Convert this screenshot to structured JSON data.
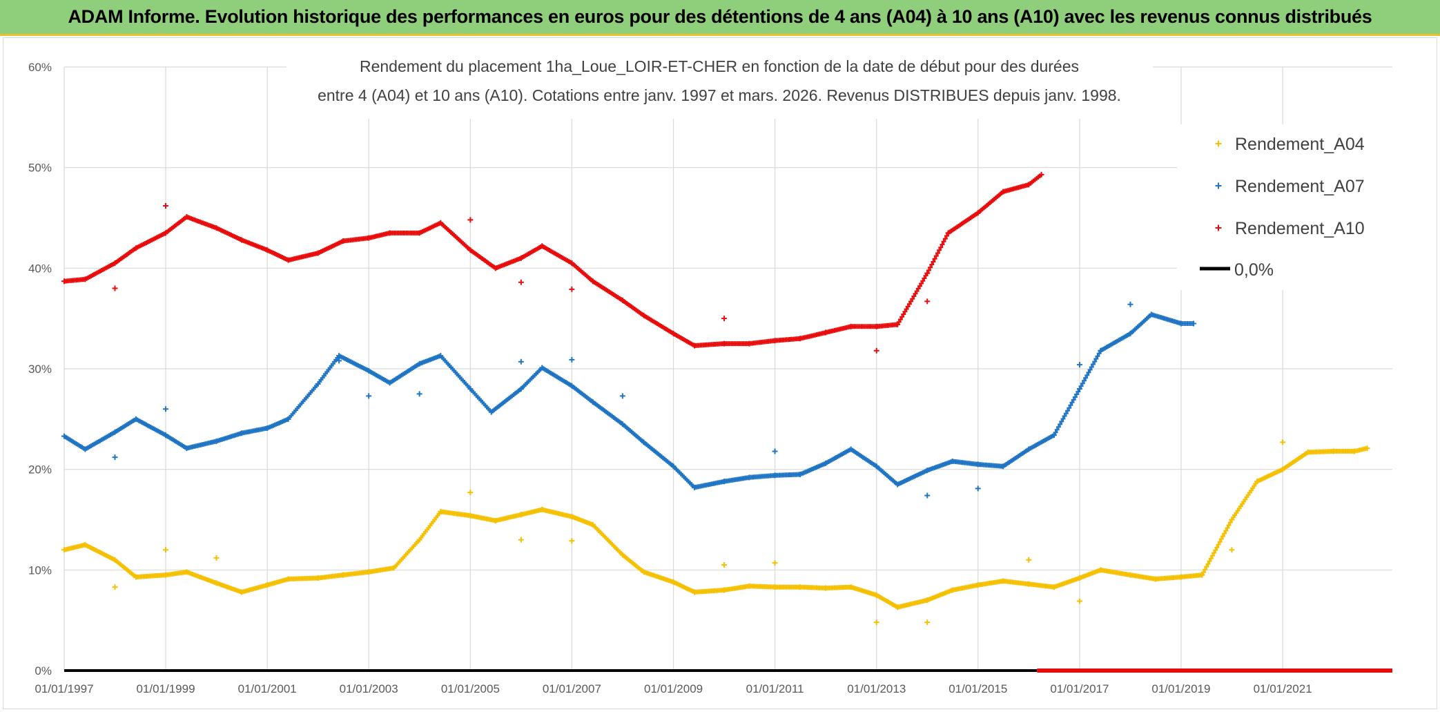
{
  "header": {
    "banner": "ADAM Informe. Evolution historique des performances en euros pour des détentions de 4 ans (A04) à 10 ans (A10) avec les revenus connus distribués"
  },
  "chart_data": {
    "type": "scatter",
    "title_lines": [
      "Rendement du placement 1ha_Loue_LOIR-ET-CHER en fonction de la date de début pour des durées",
      "entre 4 (A04) et 10 ans (A10). Cotations entre janv. 1997 et mars. 2026. Revenus DISTRIBUES depuis janv. 1998."
    ],
    "xlabel": "",
    "ylabel": "",
    "x_range": [
      "1997-01-01",
      "2023-03-01"
    ],
    "ylim": [
      0,
      60
    ],
    "x_ticks": [
      "01/01/1997",
      "01/01/1999",
      "01/01/2001",
      "01/01/2003",
      "01/01/2005",
      "01/01/2007",
      "01/01/2009",
      "01/01/2011",
      "01/01/2013",
      "01/01/2015",
      "01/01/2017",
      "01/01/2019",
      "01/01/2021"
    ],
    "y_ticks": [
      "0%",
      "10%",
      "20%",
      "30%",
      "40%",
      "50%",
      "60%"
    ],
    "grid": true,
    "legend_position": "top-right",
    "series": [
      {
        "name": "Rendement_A04",
        "color": "#f5c000",
        "x": [
          "1997-01-01",
          "1997-06-01",
          "1998-01-01",
          "1998-06-01",
          "1999-01-01",
          "1999-06-01",
          "2000-01-01",
          "2000-07-01",
          "2001-01-01",
          "2001-06-01",
          "2002-01-01",
          "2002-07-01",
          "2003-01-01",
          "2003-07-01",
          "2004-01-01",
          "2004-06-01",
          "2005-01-01",
          "2005-07-01",
          "2006-01-01",
          "2006-06-01",
          "2007-01-01",
          "2007-06-01",
          "2008-01-01",
          "2008-06-01",
          "2009-01-01",
          "2009-06-01",
          "2010-01-01",
          "2010-07-01",
          "2011-01-01",
          "2011-07-01",
          "2012-01-01",
          "2012-07-01",
          "2013-01-01",
          "2013-06-01",
          "2014-01-01",
          "2014-07-01",
          "2015-01-01",
          "2015-07-01",
          "2016-01-01",
          "2016-07-01",
          "2017-01-01",
          "2017-06-01",
          "2018-01-01",
          "2018-07-01",
          "2019-01-01",
          "2019-06-01",
          "2020-01-01",
          "2020-07-01",
          "2021-01-01",
          "2021-07-01",
          "2022-01-01",
          "2022-06-01",
          "2022-09-01"
        ],
        "values": [
          12,
          12.5,
          11,
          9.3,
          9.5,
          9.8,
          8.7,
          7.8,
          8.5,
          9.1,
          9.2,
          9.5,
          9.8,
          10.2,
          13,
          15.8,
          15.4,
          14.9,
          15.5,
          16,
          15.3,
          14.5,
          11.5,
          9.8,
          8.8,
          7.8,
          8,
          8.4,
          8.3,
          8.3,
          8.2,
          8.3,
          7.5,
          6.3,
          7,
          8,
          8.5,
          8.9,
          8.6,
          8.3,
          9.2,
          10,
          9.5,
          9.1,
          9.3,
          9.5,
          15,
          18.8,
          20,
          21.7,
          21.8,
          21.8,
          22.1
        ]
      },
      {
        "name": "Rendement_A07",
        "color": "#1f75c4",
        "x": [
          "1997-01-01",
          "1997-06-01",
          "1998-01-01",
          "1998-06-01",
          "1999-01-01",
          "1999-06-01",
          "2000-01-01",
          "2000-07-01",
          "2001-01-01",
          "2001-06-01",
          "2002-01-01",
          "2002-06-01",
          "2003-01-01",
          "2003-06-01",
          "2004-01-01",
          "2004-06-01",
          "2005-01-01",
          "2005-06-01",
          "2006-01-01",
          "2006-06-01",
          "2007-01-01",
          "2007-06-01",
          "2008-01-01",
          "2008-06-01",
          "2009-01-01",
          "2009-06-01",
          "2010-01-01",
          "2010-07-01",
          "2011-01-01",
          "2011-07-01",
          "2012-01-01",
          "2012-07-01",
          "2013-01-01",
          "2013-06-01",
          "2014-01-01",
          "2014-07-01",
          "2015-01-01",
          "2015-07-01",
          "2016-01-01",
          "2016-07-01",
          "2017-01-01",
          "2017-06-01",
          "2018-01-01",
          "2018-06-01",
          "2019-01-01",
          "2019-04-01"
        ],
        "values": [
          23.3,
          22,
          23.7,
          25,
          23.4,
          22.1,
          22.8,
          23.6,
          24.1,
          25,
          28.5,
          31.3,
          29.8,
          28.6,
          30.5,
          31.3,
          28,
          25.7,
          28,
          30.1,
          28.3,
          26.7,
          24.5,
          22.7,
          20.3,
          18.2,
          18.8,
          19.2,
          19.4,
          19.5,
          20.6,
          22,
          20.3,
          18.5,
          19.9,
          20.8,
          20.5,
          20.3,
          22,
          23.4,
          28,
          31.8,
          33.5,
          35.4,
          34.5,
          34.5
        ]
      },
      {
        "name": "Rendement_A10",
        "color": "#e80c0c",
        "x": [
          "1997-01-01",
          "1997-06-01",
          "1998-01-01",
          "1998-06-01",
          "1999-01-01",
          "1999-06-01",
          "2000-01-01",
          "2000-07-01",
          "2001-01-01",
          "2001-06-01",
          "2002-01-01",
          "2002-07-01",
          "2003-01-01",
          "2003-06-01",
          "2004-01-01",
          "2004-06-01",
          "2005-01-01",
          "2005-07-01",
          "2006-01-01",
          "2006-06-01",
          "2007-01-01",
          "2007-06-01",
          "2008-01-01",
          "2008-06-01",
          "2009-01-01",
          "2009-06-01",
          "2010-01-01",
          "2010-07-01",
          "2011-01-01",
          "2011-07-01",
          "2012-01-01",
          "2012-07-01",
          "2013-01-01",
          "2013-06-01",
          "2014-01-01",
          "2014-06-01",
          "2015-01-01",
          "2015-07-01",
          "2016-01-01",
          "2016-04-01"
        ],
        "values": [
          38.7,
          38.9,
          40.5,
          42,
          43.5,
          45.1,
          44,
          42.8,
          41.8,
          40.8,
          41.5,
          42.7,
          43,
          43.5,
          43.5,
          44.5,
          41.8,
          40,
          41,
          42.2,
          40.5,
          38.7,
          36.8,
          35.3,
          33.5,
          32.3,
          32.5,
          32.5,
          32.8,
          33,
          33.6,
          34.2,
          34.2,
          34.4,
          39.5,
          43.5,
          45.5,
          47.6,
          48.3,
          49.3
        ]
      },
      {
        "name": "0,0%",
        "color": "#000000",
        "x": [
          "1997-01-01",
          "2016-03-01"
        ],
        "values": [
          0,
          0
        ]
      }
    ],
    "zero_band": {
      "color": "#e80c0c",
      "x": [
        "2016-03-01",
        "2023-03-01"
      ],
      "value": 0
    },
    "outliers": {
      "Rendement_A04": [
        [
          "1998-01-01",
          8.3
        ],
        [
          "1999-01-01",
          12
        ],
        [
          "2000-01-01",
          11.2
        ],
        [
          "2005-01-01",
          17.7
        ],
        [
          "2006-01-01",
          13
        ],
        [
          "2007-01-01",
          12.9
        ],
        [
          "2010-01-01",
          10.5
        ],
        [
          "2011-01-01",
          10.7
        ],
        [
          "2013-01-01",
          4.8
        ],
        [
          "2014-01-01",
          4.8
        ],
        [
          "2016-01-01",
          11
        ],
        [
          "2017-01-01",
          6.9
        ],
        [
          "2020-01-01",
          12
        ],
        [
          "2021-01-01",
          22.7
        ]
      ],
      "Rendement_A07": [
        [
          "1998-01-01",
          21.2
        ],
        [
          "1999-01-01",
          26
        ],
        [
          "2002-06-01",
          30.8
        ],
        [
          "2003-01-01",
          27.3
        ],
        [
          "2004-01-01",
          27.5
        ],
        [
          "2006-01-01",
          30.7
        ],
        [
          "2007-01-01",
          30.9
        ],
        [
          "2008-01-01",
          27.3
        ],
        [
          "2011-01-01",
          21.8
        ],
        [
          "2014-01-01",
          17.4
        ],
        [
          "2015-01-01",
          18.1
        ],
        [
          "2017-01-01",
          30.4
        ],
        [
          "2018-01-01",
          36.4
        ]
      ],
      "Rendement_A10": [
        [
          "1998-01-01",
          38
        ],
        [
          "1999-01-01",
          46.2
        ],
        [
          "2005-01-01",
          44.8
        ],
        [
          "2006-01-01",
          38.6
        ],
        [
          "2007-01-01",
          37.9
        ],
        [
          "2010-01-01",
          35
        ],
        [
          "2013-01-01",
          31.8
        ],
        [
          "2014-01-01",
          36.7
        ]
      ]
    }
  }
}
